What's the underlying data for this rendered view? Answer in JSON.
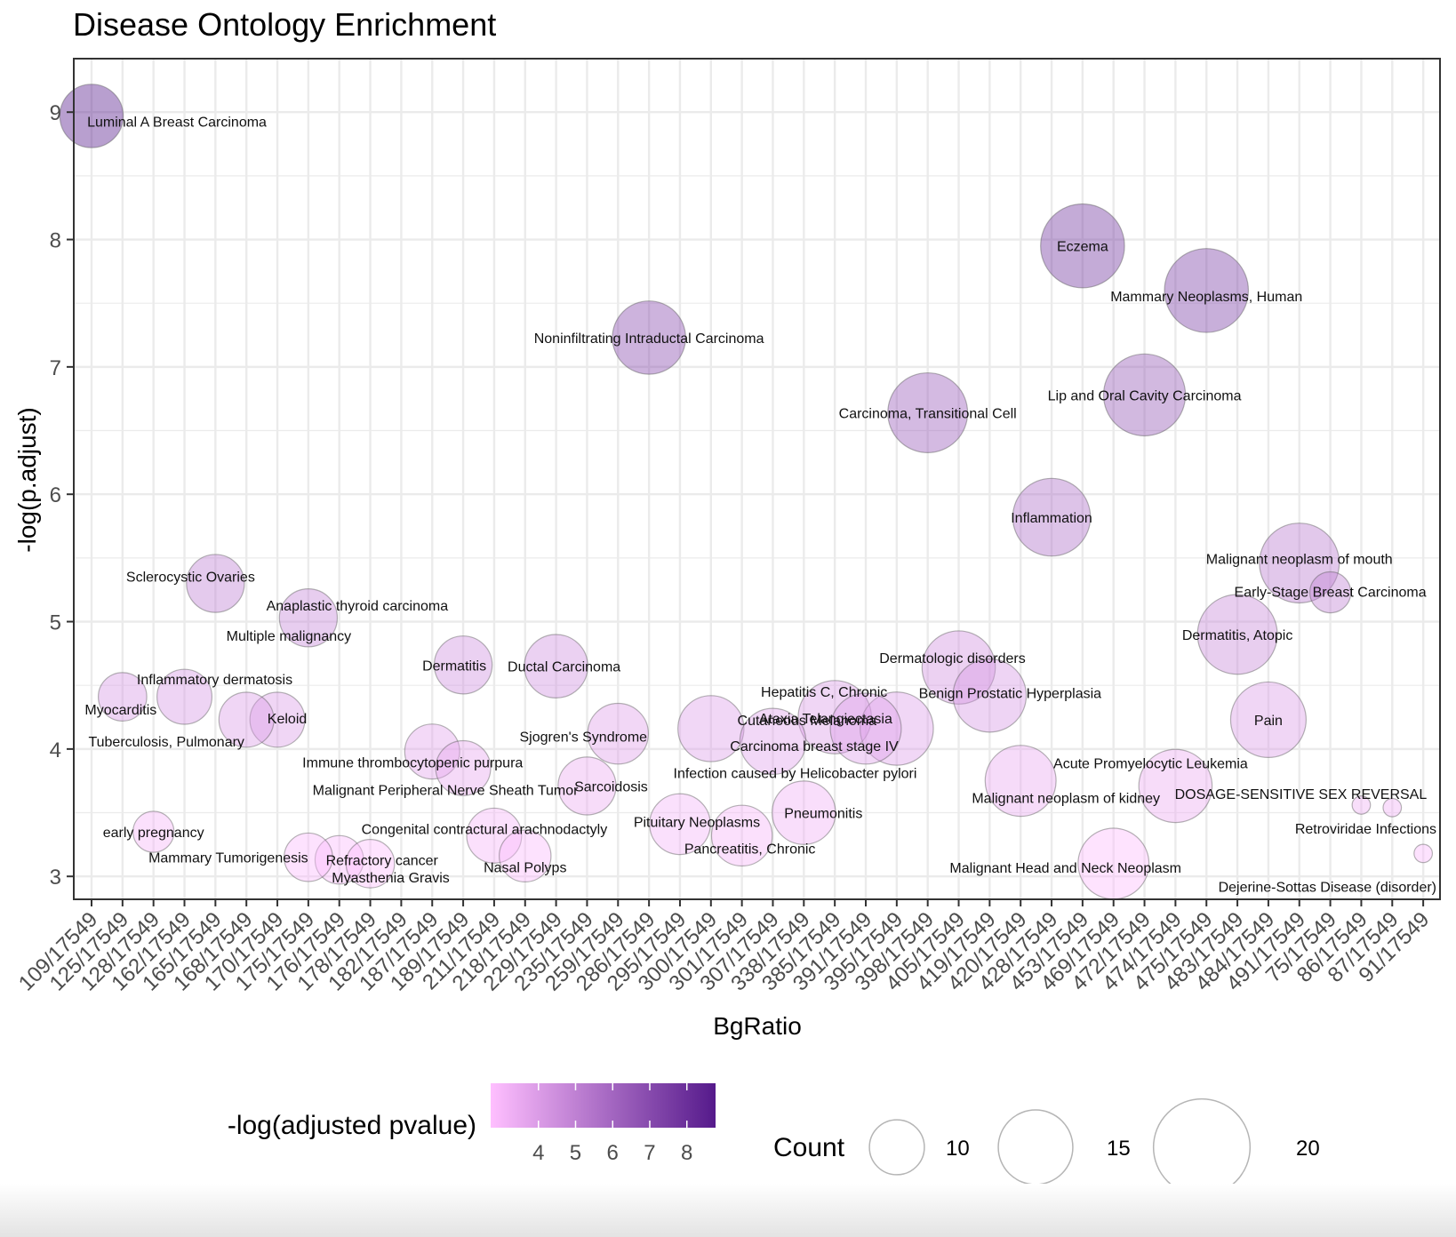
{
  "chart_data": {
    "type": "scatter",
    "title": "Disease Ontology Enrichment",
    "xlabel": "BgRatio",
    "ylabel": "-log(p.adjust)",
    "ylim": [
      2.82,
      9.42
    ],
    "yticks": [
      3,
      4,
      5,
      6,
      7,
      8,
      9
    ],
    "grid": true,
    "legend_placement": "bottom",
    "categories": [
      "109/17549",
      "125/17549",
      "128/17549",
      "162/17549",
      "165/17549",
      "168/17549",
      "170/17549",
      "175/17549",
      "176/17549",
      "178/17549",
      "182/17549",
      "187/17549",
      "189/17549",
      "211/17549",
      "218/17549",
      "229/17549",
      "235/17549",
      "259/17549",
      "286/17549",
      "295/17549",
      "300/17549",
      "301/17549",
      "307/17549",
      "338/17549",
      "385/17549",
      "391/17549",
      "395/17549",
      "398/17549",
      "405/17549",
      "419/17549",
      "420/17549",
      "428/17549",
      "453/17549",
      "469/17549",
      "472/17549",
      "474/17549",
      "475/17549",
      "483/17549",
      "484/17549",
      "491/17549",
      "75/17549",
      "86/17549",
      "87/17549",
      "91/17549"
    ],
    "color_legend": {
      "title": "-log(adjusted pvalue)",
      "ticks": [
        4,
        5,
        6,
        7,
        8
      ],
      "range": [
        3.0,
        9.0
      ],
      "low_color": "#ffbfff",
      "high_color": "#551a8b"
    },
    "size_legend": {
      "title": "Count",
      "values": [
        10,
        15,
        20
      ]
    },
    "points": [
      {
        "label": "Luminal A Breast Carcinoma",
        "x": "109/17549",
        "y": 8.97,
        "count": 12
      },
      {
        "label": "Eczema",
        "x": "453/17549",
        "y": 7.95,
        "count": 21
      },
      {
        "label": "Mammary Neoplasms, Human",
        "x": "475/17549",
        "y": 7.6,
        "count": 21
      },
      {
        "label": "Noninfiltrating Intraductal Carcinoma",
        "x": "286/17549",
        "y": 7.23,
        "count": 16
      },
      {
        "label": "Lip and Oral Cavity Carcinoma",
        "x": "472/17549",
        "y": 6.78,
        "count": 20
      },
      {
        "label": "Carcinoma, Transitional Cell",
        "x": "398/17549",
        "y": 6.64,
        "count": 19
      },
      {
        "label": "Inflammation",
        "x": "428/17549",
        "y": 5.82,
        "count": 18
      },
      {
        "label": "Malignant neoplasm of mouth",
        "x": "491/17549",
        "y": 5.46,
        "count": 19
      },
      {
        "label": "Sclerocystic Ovaries",
        "x": "165/17549",
        "y": 5.3,
        "count": 10
      },
      {
        "label": "Early-Stage Breast Carcinoma",
        "x": "75/17549",
        "y": 5.23,
        "count": 5
      },
      {
        "label": "Anaplastic thyroid carcinoma",
        "x": "175/17549",
        "y": 5.03,
        "count": 10
      },
      {
        "label": "Multiple malignancy",
        "x": "175/17549",
        "y": 5.03,
        "count": 10
      },
      {
        "label": "Dermatitis, Atopic",
        "x": "483/17549",
        "y": 4.9,
        "count": 19
      },
      {
        "label": "Dermatitis",
        "x": "189/17549",
        "y": 4.66,
        "count": 10
      },
      {
        "label": "Ductal Carcinoma",
        "x": "229/17549",
        "y": 4.65,
        "count": 12
      },
      {
        "label": "Dermatologic disorders",
        "x": "405/17549",
        "y": 4.64,
        "count": 16
      },
      {
        "label": "Inflammatory dermatosis",
        "x": "162/17549",
        "y": 4.41,
        "count": 9
      },
      {
        "label": "Myocarditis",
        "x": "125/17549",
        "y": 4.41,
        "count": 7
      },
      {
        "label": "Benign Prostatic Hyperplasia",
        "x": "419/17549",
        "y": 4.42,
        "count": 16
      },
      {
        "label": "Hepatitis C, Chronic",
        "x": "385/17549",
        "y": 4.25,
        "count": 16
      },
      {
        "label": "Keloid",
        "x": "170/17549",
        "y": 4.23,
        "count": 9
      },
      {
        "label": "Tuberculosis, Pulmonary",
        "x": "168/17549",
        "y": 4.23,
        "count": 9
      },
      {
        "label": "Pain",
        "x": "484/17549",
        "y": 4.23,
        "count": 17
      },
      {
        "label": "Ataxia Telangiectasia",
        "x": "395/17549",
        "y": 4.16,
        "count": 16
      },
      {
        "label": "Cutaneous Melanoma",
        "x": "300/17549",
        "y": 4.16,
        "count": 13
      },
      {
        "label": "Carcinoma breast stage IV",
        "x": "391/17549",
        "y": 4.16,
        "count": 15
      },
      {
        "label": "Sjogren's Syndrome",
        "x": "259/17549",
        "y": 4.12,
        "count": 11
      },
      {
        "label": "Infection caused by Helicobacter pylori",
        "x": "307/17549",
        "y": 4.06,
        "count": 13
      },
      {
        "label": "Immune thrombocytopenic purpura",
        "x": "187/17549",
        "y": 3.98,
        "count": 9
      },
      {
        "label": "Malignant Peripheral Nerve Sheath Tumor",
        "x": "189/17549",
        "y": 3.85,
        "count": 9
      },
      {
        "label": "Acute Promyelocytic Leukemia",
        "x": "474/17549",
        "y": 3.71,
        "count": 16
      },
      {
        "label": "Malignant neoplasm of kidney",
        "x": "420/17549",
        "y": 3.75,
        "count": 15
      },
      {
        "label": "Sarcoidosis",
        "x": "235/17549",
        "y": 3.71,
        "count": 10
      },
      {
        "label": "DOSAGE-SENSITIVE SEX REVERSAL",
        "x": "86/17549",
        "y": 3.56,
        "count": 1
      },
      {
        "label": "Pneumonitis",
        "x": "338/17549",
        "y": 3.5,
        "count": 12
      },
      {
        "label": "Pituitary Neoplasms",
        "x": "295/17549",
        "y": 3.41,
        "count": 11
      },
      {
        "label": "Retroviridae Infections",
        "x": "87/17549",
        "y": 3.54,
        "count": 1
      },
      {
        "label": "early pregnancy",
        "x": "128/17549",
        "y": 3.35,
        "count": 5
      },
      {
        "label": "Congenital contractural arachnodactyly",
        "x": "211/17549",
        "y": 3.32,
        "count": 9
      },
      {
        "label": "Pancreatitis, Chronic",
        "x": "301/17549",
        "y": 3.32,
        "count": 11
      },
      {
        "label": "Dejerine-Sottas Disease (disorder)",
        "x": "91/17549",
        "y": 3.18,
        "count": 1
      },
      {
        "label": "Refractory cancer",
        "x": "176/17549",
        "y": 3.13,
        "count": 7
      },
      {
        "label": "Nasal Polyps",
        "x": "218/17549",
        "y": 3.16,
        "count": 8
      },
      {
        "label": "Mammary Tumorigenesis",
        "x": "175/17549",
        "y": 3.15,
        "count": 7
      },
      {
        "label": "Myasthenia Gravis",
        "x": "178/17549",
        "y": 3.1,
        "count": 7
      },
      {
        "label": "Malignant Head and Neck Neoplasm",
        "x": "469/17549",
        "y": 3.1,
        "count": 15
      }
    ]
  }
}
